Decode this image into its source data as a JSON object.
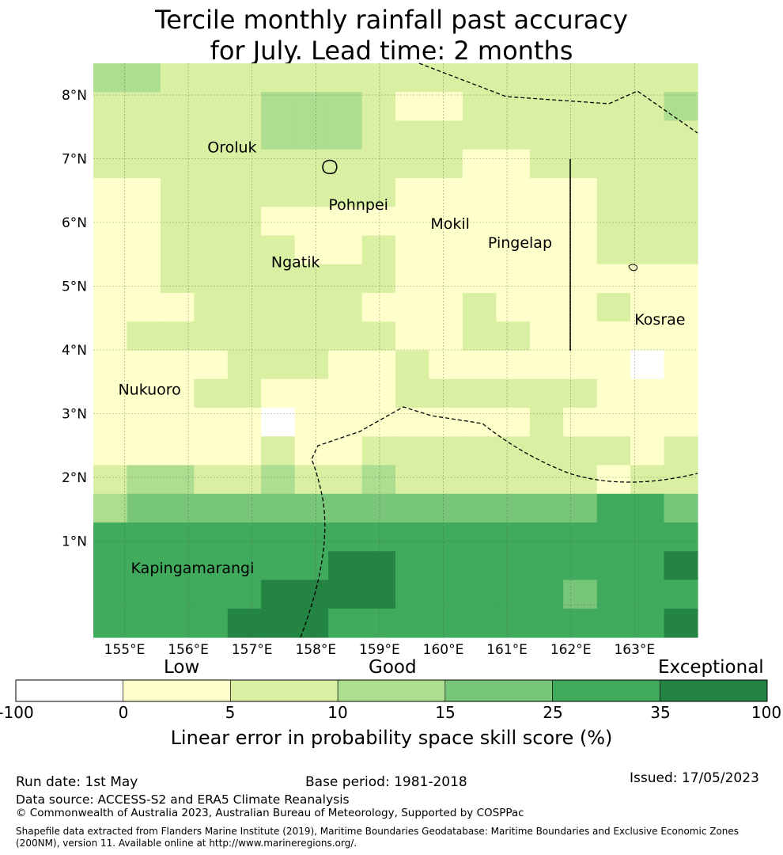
{
  "title_line1": "Tercile monthly rainfall past accuracy",
  "title_line2": "for July. Lead time: 2 months",
  "map": {
    "lon_range": [
      154.5,
      164.0
    ],
    "lat_range": [
      -1.5,
      7.5
    ],
    "grid_lons": [
      155,
      156,
      157,
      158,
      159,
      160,
      161,
      162,
      163
    ],
    "grid_lats": [
      0,
      1,
      2,
      3,
      4,
      5,
      6,
      7,
      8
    ],
    "x_tick_labels": [
      "155°E",
      "156°E",
      "157°E",
      "158°E",
      "159°E",
      "160°E",
      "161°E",
      "162°E",
      "163°E"
    ],
    "y_tick_labels": [
      "1°N",
      "2°N",
      "3°N",
      "4°N",
      "5°N",
      "6°N",
      "7°N",
      "8°N"
    ],
    "category_colors": [
      "#ffffff",
      "#ffffcc",
      "#d9f0a3",
      "#addd8e",
      "#78c679",
      "#41ab5d",
      "#238443"
    ],
    "skill_grid": [
      [
        3,
        3,
        2,
        2,
        2,
        2,
        2,
        2,
        2,
        2,
        2,
        2,
        2,
        2,
        2,
        2,
        2,
        2
      ],
      [
        2,
        2,
        2,
        2,
        2,
        3,
        3,
        3,
        2,
        1,
        1,
        2,
        2,
        2,
        2,
        2,
        2,
        3
      ],
      [
        2,
        2,
        2,
        2,
        2,
        3,
        3,
        3,
        2,
        2,
        2,
        2,
        2,
        2,
        2,
        2,
        2,
        2
      ],
      [
        2,
        2,
        2,
        2,
        2,
        2,
        2,
        2,
        2,
        2,
        2,
        1,
        1,
        2,
        2,
        2,
        2,
        2
      ],
      [
        1,
        1,
        2,
        2,
        2,
        2,
        2,
        2,
        2,
        1,
        1,
        1,
        1,
        1,
        1,
        2,
        2,
        2
      ],
      [
        1,
        1,
        2,
        2,
        2,
        1,
        1,
        1,
        1,
        1,
        1,
        1,
        1,
        1,
        1,
        2,
        2,
        2
      ],
      [
        1,
        1,
        2,
        2,
        2,
        2,
        1,
        1,
        2,
        1,
        1,
        1,
        1,
        1,
        1,
        2,
        2,
        2
      ],
      [
        1,
        1,
        2,
        2,
        2,
        2,
        2,
        2,
        2,
        1,
        1,
        1,
        1,
        1,
        1,
        1,
        1,
        1
      ],
      [
        1,
        1,
        1,
        2,
        2,
        2,
        2,
        2,
        1,
        1,
        1,
        2,
        1,
        1,
        1,
        2,
        1,
        1
      ],
      [
        1,
        2,
        2,
        2,
        2,
        2,
        2,
        2,
        2,
        1,
        1,
        2,
        2,
        1,
        1,
        1,
        1,
        1
      ],
      [
        1,
        1,
        1,
        1,
        2,
        2,
        2,
        1,
        1,
        2,
        1,
        1,
        1,
        1,
        1,
        1,
        0,
        1
      ],
      [
        1,
        1,
        1,
        2,
        2,
        1,
        1,
        1,
        1,
        2,
        2,
        2,
        2,
        2,
        2,
        1,
        1,
        1
      ],
      [
        1,
        1,
        1,
        1,
        1,
        0,
        1,
        1,
        1,
        1,
        1,
        1,
        1,
        2,
        1,
        1,
        1,
        1
      ],
      [
        1,
        1,
        1,
        1,
        1,
        2,
        1,
        1,
        2,
        2,
        2,
        2,
        2,
        2,
        2,
        2,
        1,
        2
      ],
      [
        2,
        3,
        3,
        2,
        2,
        3,
        2,
        2,
        3,
        2,
        2,
        2,
        2,
        2,
        2,
        1,
        2,
        2
      ],
      [
        3,
        4,
        4,
        4,
        4,
        4,
        4,
        4,
        4,
        4,
        4,
        4,
        4,
        4,
        4,
        5,
        5,
        4
      ],
      [
        5,
        5,
        5,
        5,
        5,
        5,
        5,
        5,
        5,
        5,
        5,
        5,
        5,
        5,
        5,
        5,
        5,
        5
      ],
      [
        5,
        5,
        5,
        5,
        5,
        5,
        5,
        6,
        6,
        5,
        5,
        5,
        5,
        5,
        5,
        5,
        5,
        6
      ],
      [
        5,
        5,
        5,
        5,
        5,
        6,
        6,
        6,
        6,
        5,
        5,
        5,
        5,
        5,
        4,
        5,
        5,
        5
      ],
      [
        5,
        5,
        5,
        5,
        6,
        6,
        6,
        5,
        5,
        5,
        5,
        5,
        5,
        5,
        5,
        5,
        5,
        6
      ]
    ],
    "places": [
      {
        "name": "Oroluk",
        "lon": 156.3,
        "lat": 7.1
      },
      {
        "name": "Pohnpei",
        "lon": 158.2,
        "lat": 6.2
      },
      {
        "name": "Mokil",
        "lon": 159.8,
        "lat": 5.9
      },
      {
        "name": "Pingelap",
        "lon": 160.7,
        "lat": 5.6
      },
      {
        "name": "Ngatik",
        "lon": 157.3,
        "lat": 5.3
      },
      {
        "name": "Kosrae",
        "lon": 163.0,
        "lat": 4.4
      },
      {
        "name": "Nukuoro",
        "lon": 154.9,
        "lat": 3.3
      },
      {
        "name": "Kapingamarangi",
        "lon": 155.1,
        "lat": 0.5
      }
    ]
  },
  "colorbar": {
    "category_labels": [
      "Low",
      "Good",
      "Exceptional"
    ],
    "bounds": [
      "-100",
      "0",
      "5",
      "10",
      "15",
      "25",
      "35",
      "100"
    ],
    "colors": [
      "#ffffff",
      "#ffffcc",
      "#d9f0a3",
      "#addd8e",
      "#78c679",
      "#41ab5d",
      "#238443"
    ],
    "title": "Linear error in probability space skill score (%)"
  },
  "footer": {
    "run_date": "Run date: 1st May",
    "base_period": "Base period: 1981-2018",
    "issued": "Issued: 17/05/2023",
    "data_source": "Data source: ACCESS-S2 and ERA5 Climate Reanalysis",
    "copyright": "© Commonwealth of Australia 2023, Australian Bureau of Meteorology, Supported by COSPPac",
    "shapefile": "Shapefile data extracted from Flanders Marine Institute (2019), Maritime Boundaries Geodatabase: Maritime Boundaries and Exclusive Economic Zones (200NM), version 11. Available online at http://www.marineregions.org/."
  }
}
